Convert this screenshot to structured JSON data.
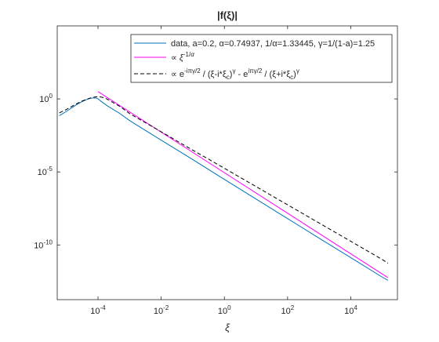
{
  "chart_data": {
    "type": "line",
    "title": "|f(ξ)|",
    "xlabel": "ξ",
    "ylabel": "",
    "x_scale": "log",
    "y_scale": "log",
    "xlim": [
      5.13e-06,
      300000
    ],
    "ylim": [
      1.8e-14,
      100000.0
    ],
    "grid": false,
    "legend_position": "top-right",
    "x_ticks": [
      {
        "value": 0.0001,
        "base": "10",
        "exp": "-4"
      },
      {
        "value": 0.01,
        "base": "10",
        "exp": "-2"
      },
      {
        "value": 1,
        "base": "10",
        "exp": "0"
      },
      {
        "value": 100,
        "base": "10",
        "exp": "2"
      },
      {
        "value": 10000,
        "base": "10",
        "exp": "4"
      }
    ],
    "y_ticks": [
      {
        "value": 1,
        "base": "10",
        "exp": "0"
      },
      {
        "value": 1e-05,
        "base": "10",
        "exp": "-5"
      },
      {
        "value": 1e-10,
        "base": "10",
        "exp": "-10"
      }
    ],
    "series": [
      {
        "name": "data, a=0.2, α=0.74937, 1/α=1.33445, γ=1/(1-a)=1.25",
        "color": "#0072BD",
        "style": "solid",
        "x": [
          6e-06,
          1e-05,
          2e-05,
          3e-05,
          4e-05,
          5e-05,
          6e-05,
          7e-05,
          8e-05,
          9e-05,
          0.0001,
          0.00013,
          0.0002,
          0.0005,
          0.001,
          0.01,
          0.1,
          1,
          10,
          100,
          1000,
          10000,
          100000,
          150000
        ],
        "y": [
          0.071,
          0.14,
          0.38,
          0.62,
          0.83,
          1.0,
          1.12,
          1.17,
          1.17,
          1.12,
          1.0,
          0.65,
          0.33,
          0.098,
          0.033,
          0.0015,
          7e-05,
          3.1e-06,
          1.4e-07,
          6.4e-09,
          2.9e-10,
          1.35e-11,
          6.2e-13,
          3.8e-13
        ]
      },
      {
        "name": "∝ ξ^(-1/α)",
        "color": "#FF00FF",
        "style": "solid",
        "x": [
          0.0001,
          150000
        ],
        "y": [
          3.2,
          5.8e-13
        ]
      },
      {
        "name": "∝ e^(-iπγ/2) / (ξ-i*ξc)^γ - e^(iπγ/2) / (ξ+i*ξc)^γ",
        "color": "#000000",
        "style": "dashed",
        "x": [
          6e-06,
          1e-05,
          2e-05,
          3e-05,
          4e-05,
          5e-05,
          6e-05,
          7e-05,
          8e-05,
          0.0001,
          0.00012,
          0.00015,
          0.0002,
          0.0005,
          0.001,
          0.01,
          0.1,
          1,
          10,
          100,
          1000,
          10000,
          100000,
          150000
        ],
        "y": [
          0.11,
          0.19,
          0.44,
          0.68,
          0.88,
          1.05,
          1.18,
          1.28,
          1.35,
          1.42,
          1.38,
          1.22,
          0.95,
          0.3,
          0.1,
          0.0056,
          0.00031,
          1.78e-05,
          1e-06,
          5.6e-08,
          3.16e-09,
          1.78e-10,
          1e-11,
          5.6e-12
        ]
      }
    ]
  }
}
